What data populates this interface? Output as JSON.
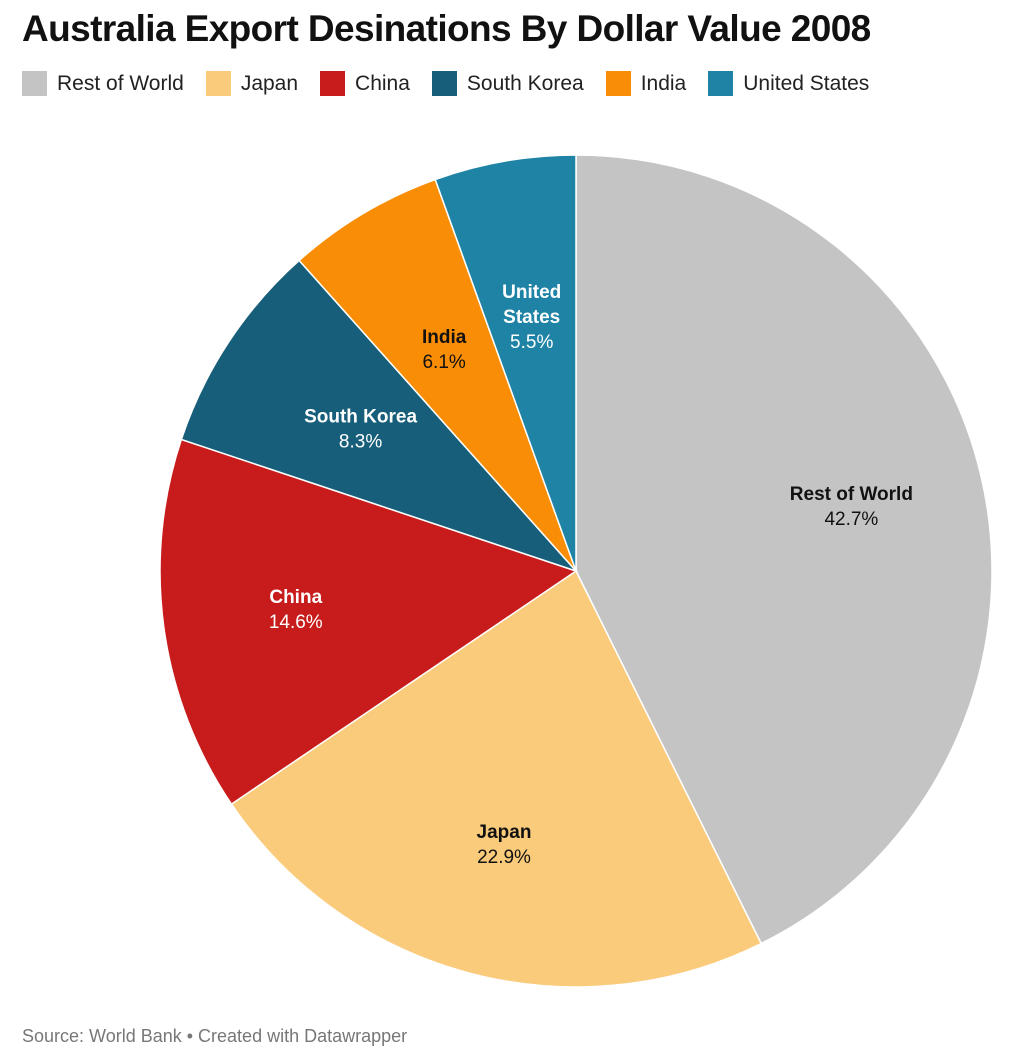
{
  "title": "Australia Export Desinations By Dollar Value 2008",
  "source": "Source: World Bank • Created with Datawrapper",
  "chart_data": {
    "type": "pie",
    "title": "Australia Export Desinations By Dollar Value 2008",
    "legend_position": "top-left",
    "start_angle_deg": 0,
    "direction": "clockwise",
    "slices": [
      {
        "name": "Rest of World",
        "label_lines": [
          "Rest of World"
        ],
        "value": 42.7,
        "value_label": "42.7%",
        "color": "#c4c4c4",
        "text_color": "#111111"
      },
      {
        "name": "Japan",
        "label_lines": [
          "Japan"
        ],
        "value": 22.9,
        "value_label": "22.9%",
        "color": "#fbcb7c",
        "text_color": "#111111"
      },
      {
        "name": "China",
        "label_lines": [
          "China"
        ],
        "value": 14.6,
        "value_label": "14.6%",
        "color": "#c81b1b",
        "text_color": "#ffffff"
      },
      {
        "name": "South Korea",
        "label_lines": [
          "South Korea"
        ],
        "value": 8.3,
        "value_label": "8.3%",
        "color": "#175e7a",
        "text_color": "#ffffff"
      },
      {
        "name": "India",
        "label_lines": [
          "India"
        ],
        "value": 6.1,
        "value_label": "6.1%",
        "color": "#f98d05",
        "text_color": "#111111"
      },
      {
        "name": "United States",
        "label_lines": [
          "United",
          "States"
        ],
        "value": 5.5,
        "value_label": "5.5%",
        "color": "#1f83a6",
        "text_color": "#ffffff"
      }
    ]
  }
}
